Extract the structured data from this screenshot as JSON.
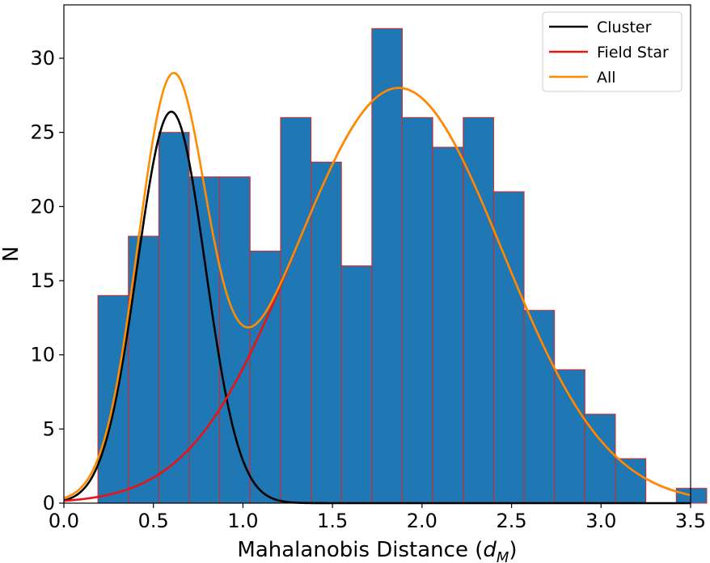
{
  "chart_data": {
    "type": "bar",
    "xlabel": "Mahalanobis Distance",
    "xlabel_symbol": "d",
    "xlabel_subscript": "M",
    "ylabel": "N",
    "xlim": [
      0.0,
      3.5
    ],
    "ylim": [
      0,
      33.6
    ],
    "xticks": [
      "0.0",
      "0.5",
      "1.0",
      "1.5",
      "2.0",
      "2.5",
      "3.0",
      "3.5"
    ],
    "yticks": [
      "0",
      "5",
      "10",
      "15",
      "20",
      "25",
      "30"
    ],
    "bin_edges": [
      0.19,
      0.36,
      0.53,
      0.7,
      0.87,
      1.04,
      1.21,
      1.38,
      1.55,
      1.72,
      1.89,
      2.06,
      2.23,
      2.4,
      2.57,
      2.74,
      2.91,
      3.08,
      3.25,
      3.42,
      3.59
    ],
    "counts": [
      14,
      18,
      25,
      22,
      22,
      17,
      26,
      23,
      16,
      32,
      26,
      24,
      26,
      21,
      13,
      9,
      6,
      3,
      0,
      1
    ],
    "bar_color": "#1f77b4",
    "bar_edge_color": "#d62728",
    "grid": false,
    "legend_position": "top-right",
    "series": [
      {
        "name": "Cluster",
        "color": "#000000",
        "kind": "gaussian",
        "amplitude": 26.4,
        "mean": 0.6,
        "sigma": 0.19
      },
      {
        "name": "Field Star",
        "color": "#ee1111",
        "kind": "gaussian",
        "amplitude": 28.0,
        "mean": 1.87,
        "sigma": 0.58
      },
      {
        "name": "All",
        "color": "#ff8c00",
        "kind": "sum",
        "components": [
          "Cluster",
          "Field Star"
        ]
      }
    ]
  }
}
